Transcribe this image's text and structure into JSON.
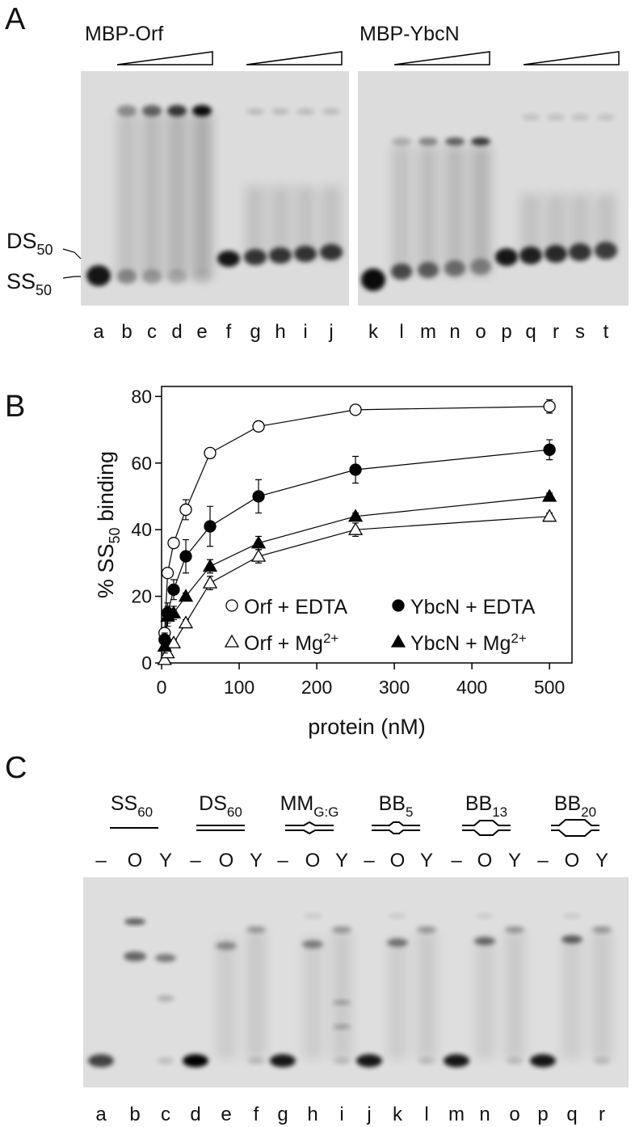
{
  "panel_a": {
    "label": "A",
    "titles": [
      "MBP-Orf",
      "MBP-YbcN"
    ],
    "markers": [
      {
        "text": "DS",
        "sub": "50"
      },
      {
        "text": "SS",
        "sub": "50"
      }
    ],
    "lanes": [
      "a",
      "b",
      "c",
      "d",
      "e",
      "f",
      "g",
      "h",
      "i",
      "j",
      "k",
      "l",
      "m",
      "n",
      "o",
      "p",
      "q",
      "r",
      "s",
      "t"
    ]
  },
  "panel_b_label": "B",
  "chart_data": {
    "type": "line",
    "xlabel": "protein (nM)",
    "ylabel": {
      "text": "% SS",
      "sub": "50",
      "rest": " binding"
    },
    "x": [
      3.9,
      7.8,
      15.6,
      31.25,
      62.5,
      125,
      250,
      500
    ],
    "xlim": [
      0,
      529
    ],
    "ylim": [
      0,
      83
    ],
    "xticks": [
      0,
      100,
      200,
      300,
      400,
      500
    ],
    "yticks": [
      0,
      20,
      40,
      60,
      80
    ],
    "series": [
      {
        "name": "Orf + EDTA",
        "marker": "circle",
        "filled": false,
        "color": "#000000",
        "values": [
          9,
          27,
          36,
          46,
          63,
          71,
          76,
          77
        ],
        "errors": [
          1,
          1,
          1,
          3,
          1,
          1,
          1,
          2
        ]
      },
      {
        "name": "YbcN + EDTA",
        "marker": "circle",
        "filled": true,
        "color": "#000000",
        "values": [
          7,
          15,
          22,
          32,
          41,
          50,
          58,
          64
        ],
        "errors": [
          2,
          3,
          3,
          5,
          6,
          5,
          4,
          3
        ]
      },
      {
        "name": "Orf + Mg",
        "name_sup": "2+",
        "marker": "triangle",
        "filled": false,
        "color": "#000000",
        "values": [
          1,
          3,
          6,
          12,
          24,
          32,
          40,
          44
        ],
        "errors": [
          1,
          1,
          1,
          1,
          2,
          2,
          2,
          1
        ]
      },
      {
        "name": "YbcN + Mg",
        "name_sup": "2+",
        "marker": "triangle",
        "filled": true,
        "color": "#000000",
        "values": [
          5,
          14,
          15,
          20,
          29,
          36,
          44,
          50
        ],
        "errors": [
          2,
          3,
          2,
          1,
          2,
          2,
          1,
          1
        ]
      }
    ]
  },
  "panel_c": {
    "label": "C",
    "headers": [
      {
        "text": "SS",
        "sub": "60"
      },
      {
        "text": "DS",
        "sub": "60"
      },
      {
        "text": "MM",
        "sub": "G:G"
      },
      {
        "text": "BB",
        "sub": "5"
      },
      {
        "text": "BB",
        "sub": "13"
      },
      {
        "text": "BB",
        "sub": "20"
      }
    ],
    "lane_groups": [
      [
        "–",
        "O",
        "Y"
      ],
      [
        "–",
        "O",
        "Y"
      ],
      [
        "–",
        "O",
        "Y"
      ],
      [
        "–",
        "O",
        "Y"
      ],
      [
        "–",
        "O",
        "Y"
      ],
      [
        "–",
        "O",
        "Y"
      ]
    ],
    "lanes": [
      "a",
      "b",
      "c",
      "d",
      "e",
      "f",
      "g",
      "h",
      "i",
      "j",
      "k",
      "l",
      "m",
      "n",
      "o",
      "p",
      "q",
      "r"
    ]
  }
}
